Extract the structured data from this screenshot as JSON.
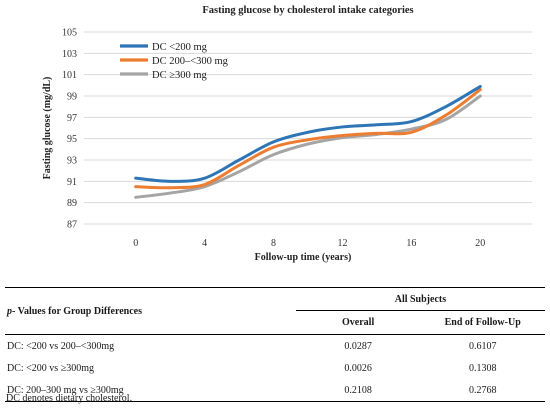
{
  "chart_data": {
    "type": "line",
    "title": "Fasting glucose by cholesterol intake categories",
    "xlabel": "Follow-up time (years)",
    "ylabel": "Fasting glucose (mg/dL)",
    "x": [
      0,
      2,
      4,
      6,
      8,
      10,
      12,
      14,
      16,
      18,
      20
    ],
    "xticks": [
      "0",
      "4",
      "8",
      "12",
      "16",
      "20"
    ],
    "xtick_values": [
      0,
      4,
      8,
      12,
      16,
      20
    ],
    "xlim": [
      -3,
      23
    ],
    "ylim": [
      87,
      105
    ],
    "yticks": [
      87,
      89,
      91,
      93,
      95,
      97,
      99,
      101,
      103,
      105
    ],
    "grid": "horizontal",
    "legend_position": "top-left",
    "series": [
      {
        "name": "DC <200 mg",
        "color": "#2e75b6",
        "values": [
          91.3,
          91.0,
          91.3,
          93.0,
          94.7,
          95.6,
          96.1,
          96.3,
          96.6,
          98.0,
          99.9
        ]
      },
      {
        "name": "DC 200–<300 mg",
        "color": "#ed7d31",
        "values": [
          90.5,
          90.4,
          90.7,
          92.5,
          94.2,
          94.9,
          95.3,
          95.5,
          95.6,
          97.2,
          99.6
        ]
      },
      {
        "name": "DC ≥300 mg",
        "color": "#a5a5a5",
        "values": [
          89.5,
          89.9,
          90.5,
          91.9,
          93.5,
          94.5,
          95.1,
          95.4,
          95.9,
          96.8,
          99.0
        ]
      }
    ]
  },
  "table": {
    "title_italic": "p",
    "title_rest": "- Values for Group Differences",
    "group_header": "All Subjects",
    "columns": [
      "Overall",
      "End of Follow-Up"
    ],
    "rows": [
      {
        "label": "DC: <200 vs 200–<300mg",
        "overall": "0.0287",
        "end": "0.6107"
      },
      {
        "label": "DC: <200 vs ≥300mg",
        "overall": "0.0026",
        "end": "0.1308"
      },
      {
        "label": "DC: 200–300 mg vs ≥300mg",
        "overall": "0.2108",
        "end": "0.2768"
      }
    ]
  },
  "footnote": "DC denotes dietary cholesterol."
}
